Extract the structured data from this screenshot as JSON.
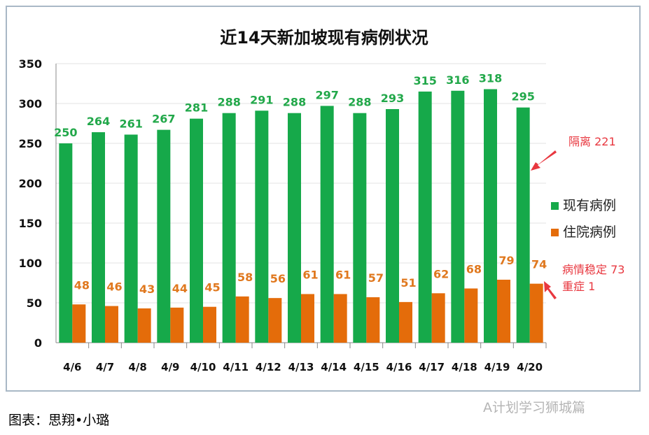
{
  "chart_data": {
    "type": "bar",
    "title": "近14天新加坡现有病例状况",
    "categories": [
      "4/6",
      "4/7",
      "4/8",
      "4/9",
      "4/10",
      "4/11",
      "4/12",
      "4/13",
      "4/14",
      "4/15",
      "4/16",
      "4/17",
      "4/18",
      "4/19",
      "4/20"
    ],
    "series": [
      {
        "name": "现有病例",
        "color": "#16a94a",
        "label_color": "#22a84a",
        "values": [
          250,
          264,
          261,
          267,
          281,
          288,
          291,
          288,
          297,
          288,
          293,
          315,
          316,
          318,
          295
        ]
      },
      {
        "name": "住院病例",
        "color": "#e46c0a",
        "label_color": "#e0781e",
        "values": [
          48,
          46,
          43,
          44,
          45,
          58,
          56,
          61,
          61,
          57,
          51,
          62,
          68,
          79,
          74
        ]
      }
    ],
    "ylim": [
      0,
      350
    ],
    "yticks": [
      0,
      50,
      100,
      150,
      200,
      250,
      300,
      350
    ],
    "grid": true,
    "legend": "right"
  },
  "annotations": {
    "isolation": "隔离 221",
    "stable": "病情稳定 73",
    "critical": "重症 1",
    "color": "#e8373f"
  },
  "caption": "图表：思翔•小璐",
  "watermark": "A计划学习狮城篇"
}
